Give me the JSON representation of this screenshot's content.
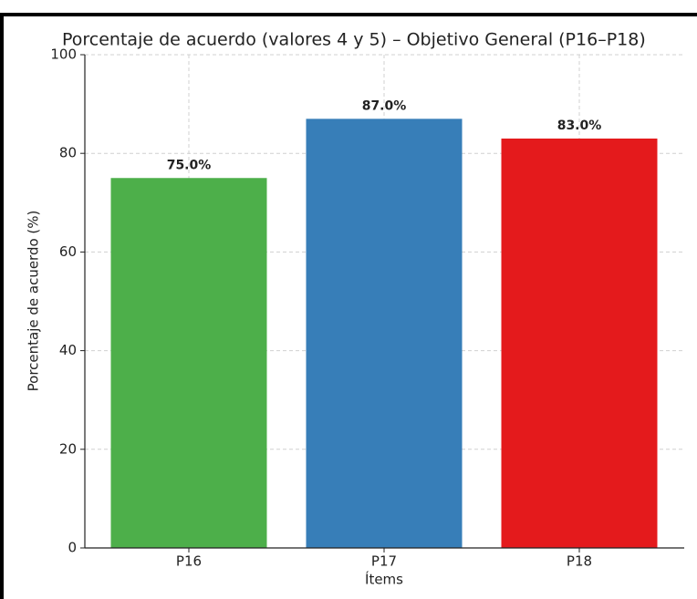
{
  "chart_data": {
    "type": "bar",
    "title": "Porcentaje de acuerdo (valores 4 y 5) – Objetivo General (P16–P18)",
    "x_label": "Ítems",
    "y_label": "Porcentaje de acuerdo (%)",
    "categories": [
      "P16",
      "P17",
      "P18"
    ],
    "values": [
      75,
      87,
      83
    ],
    "value_labels": [
      "75.0%",
      "87.0%",
      "83.0%"
    ],
    "colors": [
      "#4daf4a",
      "#377eb8",
      "#e41a1c"
    ],
    "ylim": [
      0,
      100
    ],
    "yticks": [
      0,
      20,
      40,
      60,
      80,
      100
    ],
    "grid": true
  }
}
